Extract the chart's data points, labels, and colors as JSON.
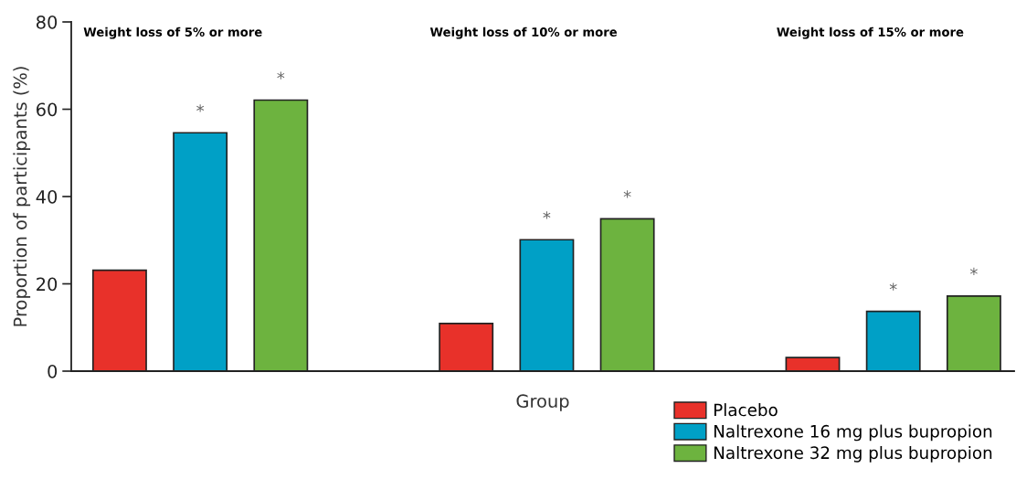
{
  "chart_data": {
    "type": "bar",
    "xlabel": "Group",
    "ylabel": "Proportion of participants (%)",
    "categories": [
      null,
      null,
      null
    ],
    "annotations": [
      "Weight loss of 5% or more",
      "Weight loss of 10% or more",
      "Weight loss of 15% or more"
    ],
    "ylim": [
      0,
      80
    ],
    "yticks": [
      0,
      20,
      40,
      60,
      80
    ],
    "legend": "bottom right",
    "series": [
      {
        "name": "Placebo",
        "color": "#e8312a",
        "values": [
          23.1,
          10.9,
          3.1
        ],
        "value_labels": [
          null,
          null,
          null
        ]
      },
      {
        "name": "Naltrexone 16 mg plus bupropion",
        "color": "#00a0c6",
        "values": [
          54.6,
          30.1,
          13.7
        ],
        "value_labels": [
          "*",
          "*",
          "*"
        ]
      },
      {
        "name": "Naltrexone 32 mg plus bupropion",
        "color": "#6db33f",
        "values": [
          62.1,
          34.9,
          17.2
        ],
        "value_labels": [
          "*",
          "*",
          "*"
        ]
      }
    ]
  }
}
